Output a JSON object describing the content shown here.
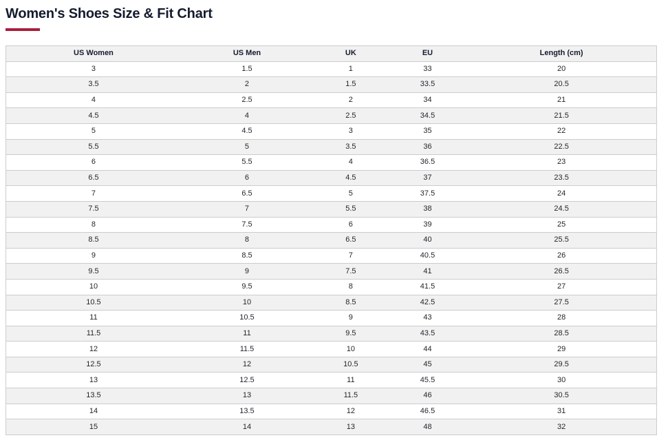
{
  "page_title": "Women's Shoes Size & Fit Chart",
  "theme": {
    "accent": "#a81e3d",
    "header_bg": "#f1f1f1",
    "row_stripe_bg": "#f1f1f1",
    "row_bg": "#ffffff",
    "border": "#cccccc",
    "title_color": "#141b2d",
    "text_color": "#1f2329"
  },
  "chart_data": {
    "type": "table",
    "title": "Women's Shoes Size & Fit Chart",
    "columns": [
      "US Women",
      "US Men",
      "UK",
      "EU",
      "Length (cm)"
    ],
    "rows": [
      [
        "3",
        "1.5",
        "1",
        "33",
        "20"
      ],
      [
        "3.5",
        "2",
        "1.5",
        "33.5",
        "20.5"
      ],
      [
        "4",
        "2.5",
        "2",
        "34",
        "21"
      ],
      [
        "4.5",
        "4",
        "2.5",
        "34.5",
        "21.5"
      ],
      [
        "5",
        "4.5",
        "3",
        "35",
        "22"
      ],
      [
        "5.5",
        "5",
        "3.5",
        "36",
        "22.5"
      ],
      [
        "6",
        "5.5",
        "4",
        "36.5",
        "23"
      ],
      [
        "6.5",
        "6",
        "4.5",
        "37",
        "23.5"
      ],
      [
        "7",
        "6.5",
        "5",
        "37.5",
        "24"
      ],
      [
        "7.5",
        "7",
        "5.5",
        "38",
        "24.5"
      ],
      [
        "8",
        "7.5",
        "6",
        "39",
        "25"
      ],
      [
        "8.5",
        "8",
        "6.5",
        "40",
        "25.5"
      ],
      [
        "9",
        "8.5",
        "7",
        "40.5",
        "26"
      ],
      [
        "9.5",
        "9",
        "7.5",
        "41",
        "26.5"
      ],
      [
        "10",
        "9.5",
        "8",
        "41.5",
        "27"
      ],
      [
        "10.5",
        "10",
        "8.5",
        "42.5",
        "27.5"
      ],
      [
        "11",
        "10.5",
        "9",
        "43",
        "28"
      ],
      [
        "11.5",
        "11",
        "9.5",
        "43.5",
        "28.5"
      ],
      [
        "12",
        "11.5",
        "10",
        "44",
        "29"
      ],
      [
        "12.5",
        "12",
        "10.5",
        "45",
        "29.5"
      ],
      [
        "13",
        "12.5",
        "11",
        "45.5",
        "30"
      ],
      [
        "13.5",
        "13",
        "11.5",
        "46",
        "30.5"
      ],
      [
        "14",
        "13.5",
        "12",
        "46.5",
        "31"
      ],
      [
        "15",
        "14",
        "13",
        "48",
        "32"
      ]
    ]
  }
}
